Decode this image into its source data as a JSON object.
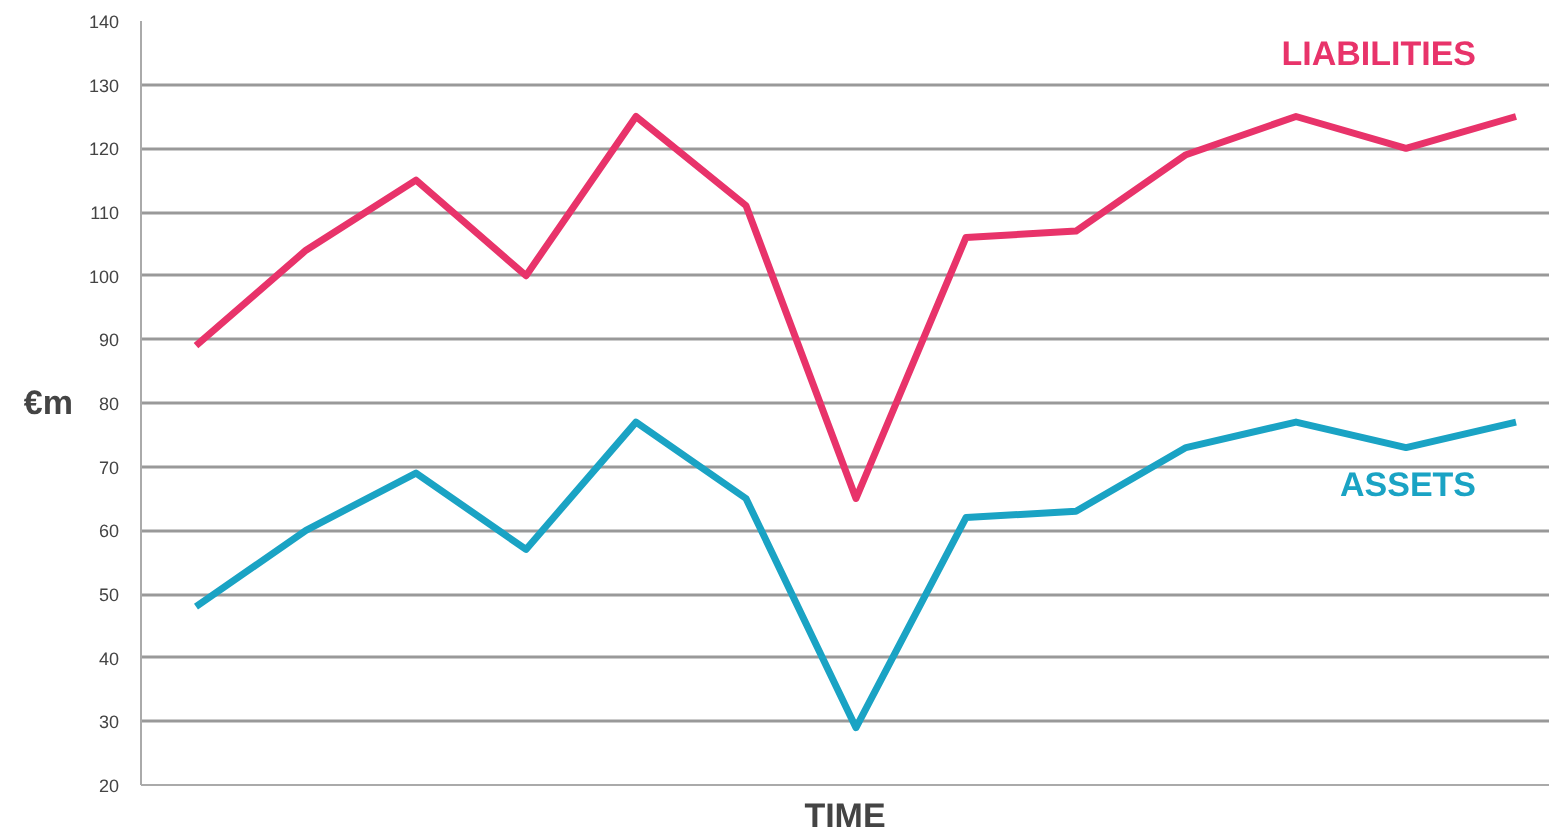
{
  "chart_data": {
    "type": "line",
    "xlabel": "TIME",
    "ylabel": "€m",
    "categories": [
      null,
      null,
      null,
      null,
      null,
      null,
      null,
      null,
      null,
      null,
      null,
      null,
      null
    ],
    "series": [
      {
        "name": "LIABILITIES",
        "color": "#e8336a",
        "values": [
          89,
          104,
          115,
          100,
          125,
          111,
          65,
          106,
          107,
          119,
          125,
          120,
          125
        ]
      },
      {
        "name": "ASSETS",
        "color": "#1aa3c4",
        "values": [
          48,
          60,
          69,
          57,
          77,
          65,
          29,
          62,
          63,
          73,
          77,
          73,
          77
        ]
      }
    ],
    "ylim": [
      20,
      140
    ],
    "yticks": [
      20,
      30,
      40,
      50,
      60,
      70,
      80,
      90,
      100,
      110,
      120,
      130,
      140
    ],
    "grid": "y",
    "tick_labels": "y",
    "marker": "none",
    "line_style": "solid"
  }
}
